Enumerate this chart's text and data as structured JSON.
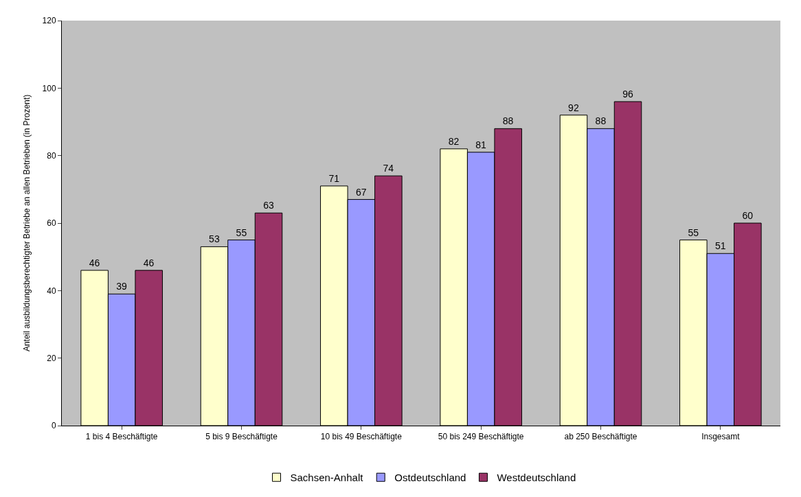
{
  "chart_data": {
    "type": "bar",
    "ylabel": "Anteil ausbildungsberechtigter Betriebe an allen Betrieben (in Prozent)",
    "categories": [
      "1 bis 4 Beschäftigte",
      "5 bis 9 Beschäftigte",
      "10 bis 49 Beschäftigte",
      "50 bis 249 Beschäftigte",
      "ab 250 Beschäftigte",
      "Insgesamt"
    ],
    "series": [
      {
        "name": "Sachsen-Anhalt",
        "color": "#ffffcc",
        "values": [
          46,
          53,
          71,
          82,
          92,
          55
        ]
      },
      {
        "name": "Ostdeutschland",
        "color": "#9999ff",
        "values": [
          39,
          55,
          67,
          81,
          88,
          51
        ]
      },
      {
        "name": "Westdeutschland",
        "color": "#993366",
        "values": [
          46,
          63,
          74,
          88,
          96,
          60
        ]
      }
    ],
    "ylim": [
      0,
      120
    ],
    "yticks": [
      0,
      20,
      40,
      60,
      80,
      100,
      120
    ],
    "grid": false,
    "legend": "bottom",
    "data_labels": true
  }
}
